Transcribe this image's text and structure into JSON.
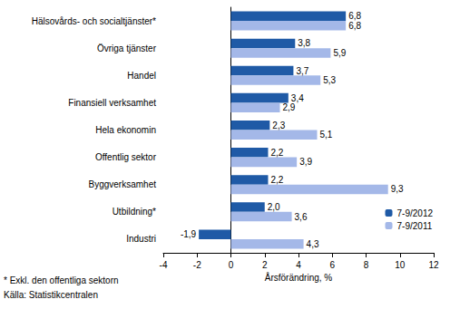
{
  "chart_data": {
    "type": "bar",
    "orientation": "horizontal",
    "categories": [
      "Hälsovårds- och socialtjänster*",
      "Övriga tjänster",
      "Handel",
      "Finansiell verksamhet",
      "Hela ekonomin",
      "Offentlig sektor",
      "Byggverksamhet",
      "Utbildning*",
      "Industri"
    ],
    "series": [
      {
        "name": "7-9/2012",
        "color": "#1f5aa6",
        "values": [
          6.8,
          3.8,
          3.7,
          3.4,
          2.3,
          2.2,
          2.2,
          2.0,
          -1.9
        ],
        "value_labels": [
          "6,8",
          "3,8",
          "3,7",
          "3,4",
          "2,3",
          "2,2",
          "2,2",
          "2,0",
          "-1,9"
        ]
      },
      {
        "name": "7-9/2011",
        "color": "#a4b8e8",
        "values": [
          6.8,
          5.9,
          5.3,
          2.9,
          5.1,
          3.9,
          9.3,
          3.6,
          4.3
        ],
        "value_labels": [
          "6,8",
          "5,9",
          "5,3",
          "2,9",
          "5,1",
          "3,9",
          "9,3",
          "3,6",
          "4,3"
        ]
      }
    ],
    "x_label": "Årsförändring, %",
    "xlim": [
      -4,
      12
    ],
    "xticks": [
      -4,
      -2,
      0,
      2,
      4,
      6,
      8,
      10,
      12
    ],
    "annotations": [
      "* Exkl. den offentliga sektorn",
      "Källa: Statistikcentralen"
    ],
    "data_labels": true,
    "legend": "lower right",
    "grid": false
  }
}
